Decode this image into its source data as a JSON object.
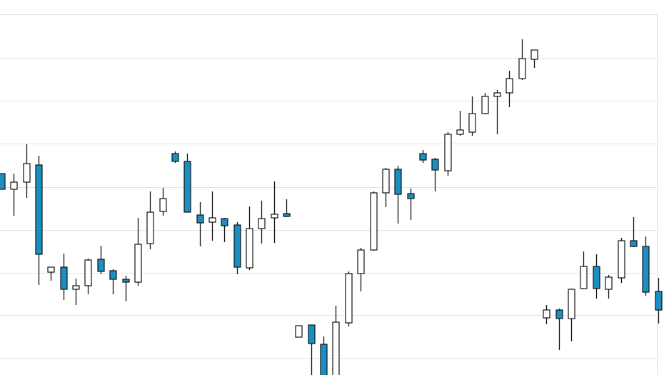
{
  "chart_data": {
    "type": "candlestick",
    "categories": [
      null,
      null,
      null,
      null,
      null,
      null,
      null,
      null,
      null,
      null,
      null,
      null,
      null,
      null,
      null,
      null,
      null,
      null,
      null,
      null,
      null,
      null,
      null,
      null,
      null,
      null,
      null,
      null,
      null,
      null,
      null,
      null,
      null,
      null,
      null,
      null,
      null,
      null,
      null,
      null,
      null,
      null,
      null,
      null,
      null,
      null,
      null,
      null,
      null,
      null,
      null,
      null,
      null,
      null
    ],
    "open": [
      282,
      260,
      270,
      294,
      144,
      151,
      120,
      125,
      162,
      146,
      134,
      130,
      184,
      229,
      310,
      299,
      224,
      214,
      219,
      210,
      150,
      205,
      220,
      226,
      53,
      70,
      43,
      -10,
      73,
      142,
      175,
      255,
      288,
      254,
      310,
      302,
      286,
      337,
      340,
      366,
      390,
      395,
      415,
      442,
      80,
      91,
      79,
      121,
      152,
      120,
      136,
      188,
      180,
      117
    ],
    "high": [
      282,
      282,
      323,
      307,
      151,
      170,
      135,
      163,
      181,
      148,
      139,
      220,
      257,
      262,
      313,
      310,
      242,
      257,
      220,
      214,
      236,
      244,
      271,
      246,
      69,
      70,
      54,
      97,
      145,
      178,
      257,
      290,
      293,
      261,
      315,
      304,
      340,
      370,
      390,
      395,
      399,
      426,
      470,
      455,
      98,
      93,
      121,
      173,
      169,
      140,
      192,
      221,
      194,
      136
    ],
    "low": [
      260,
      223,
      248,
      126,
      132,
      105,
      98,
      113,
      141,
      113,
      103,
      125,
      176,
      223,
      297,
      228,
      180,
      188,
      186,
      141,
      147,
      184,
      185,
      221,
      53,
      -15,
      -15,
      -15,
      68,
      117,
      174,
      235,
      212,
      217,
      297,
      257,
      279,
      335,
      335,
      365,
      337,
      375,
      413,
      430,
      71,
      35,
      47,
      120,
      107,
      107,
      129,
      179,
      111,
      72
    ],
    "close": [
      260,
      270,
      296,
      169,
      151,
      120,
      125,
      161,
      145,
      134,
      130,
      183,
      228,
      247,
      299,
      228,
      213,
      220,
      209,
      151,
      205,
      219,
      225,
      222,
      69,
      44,
      -5,
      74,
      142,
      175,
      255,
      288,
      253,
      247,
      301,
      287,
      337,
      343,
      366,
      390,
      395,
      415,
      443,
      455,
      91,
      79,
      120,
      152,
      121,
      137,
      188,
      180,
      116,
      91
    ],
    "up_color": "#ffffff",
    "down_color": "#1a8fc2",
    "ylim": [
      0,
      525
    ],
    "yticks": [
      24,
      84,
      143,
      203,
      263,
      324,
      384,
      444,
      505
    ],
    "grid": true
  }
}
